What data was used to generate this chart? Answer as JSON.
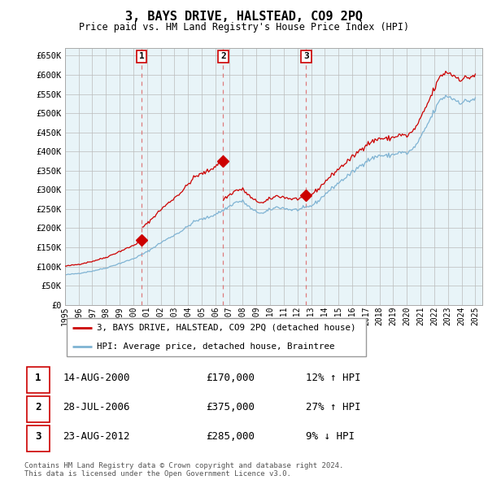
{
  "title": "3, BAYS DRIVE, HALSTEAD, CO9 2PQ",
  "subtitle": "Price paid vs. HM Land Registry's House Price Index (HPI)",
  "ylabel_ticks": [
    "£0",
    "£50K",
    "£100K",
    "£150K",
    "£200K",
    "£250K",
    "£300K",
    "£350K",
    "£400K",
    "£450K",
    "£500K",
    "£550K",
    "£600K",
    "£650K"
  ],
  "ytick_values": [
    0,
    50000,
    100000,
    150000,
    200000,
    250000,
    300000,
    350000,
    400000,
    450000,
    500000,
    550000,
    600000,
    650000
  ],
  "ylim": [
    0,
    670000
  ],
  "legend_label_red": "3, BAYS DRIVE, HALSTEAD, CO9 2PQ (detached house)",
  "legend_label_blue": "HPI: Average price, detached house, Braintree",
  "copyright_text": "Contains HM Land Registry data © Crown copyright and database right 2024.\nThis data is licensed under the Open Government Licence v3.0.",
  "line_color_red": "#cc0000",
  "line_color_blue": "#7fb3d3",
  "chart_bg_color": "#e8f4f8",
  "background_color": "#ffffff",
  "grid_color": "#bbbbbb",
  "dashed_color": "#dd6666",
  "price_paid_dates": [
    2000.62,
    2006.57,
    2012.64
  ],
  "price_paid_values": [
    170000,
    375000,
    285000
  ],
  "transaction_data": [
    {
      "num": "1",
      "date": "14-AUG-2000",
      "price": "£170,000",
      "pct": "12%",
      "dir": "↑"
    },
    {
      "num": "2",
      "date": "28-JUL-2006",
      "price": "£375,000",
      "pct": "27%",
      "dir": "↑"
    },
    {
      "num": "3",
      "date": "23-AUG-2012",
      "price": "£285,000",
      "pct": "9%",
      "dir": "↓"
    }
  ]
}
